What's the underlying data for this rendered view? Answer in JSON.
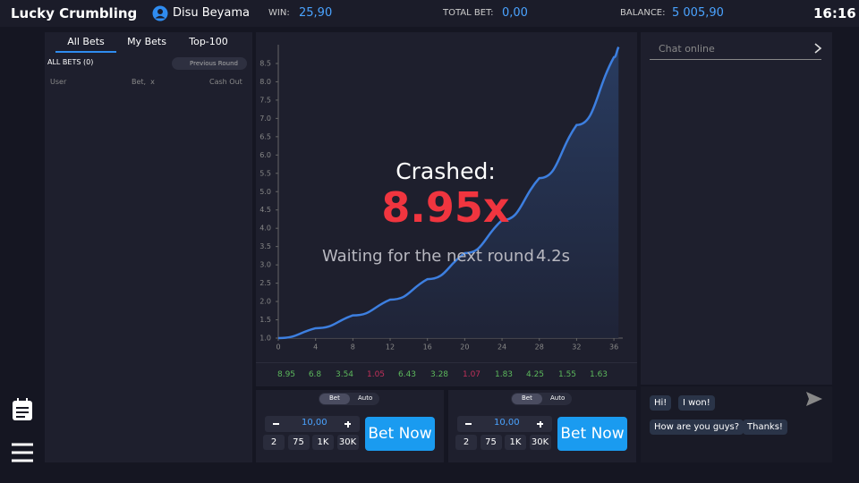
{
  "header": {
    "title": "Lucky Crumbling",
    "user": "Disu Beyama",
    "win_label": "WIN:",
    "win": "25,90",
    "total_bet_label": "TOTAL BET:",
    "total_bet": "0,00",
    "balance_label": "BALANCE:",
    "balance": "5 005,90",
    "time": "16:16"
  },
  "bets": {
    "tabs": [
      "All Bets",
      "My Bets",
      "Top-100"
    ],
    "count": "ALL BETS (0)",
    "previous_round": "Previous Round",
    "columns": [
      "User",
      "Bet,  x",
      "Cash Out"
    ]
  },
  "chart_data": {
    "type": "line",
    "x": [
      0,
      4,
      8,
      12,
      16,
      20,
      24,
      28,
      32,
      36,
      36.5
    ],
    "values": [
      1,
      1.27,
      1.62,
      2.05,
      2.61,
      3.32,
      4.22,
      5.37,
      6.82,
      8.67,
      8.95
    ],
    "color": "#3d7fe0",
    "xlim": [
      0,
      37
    ],
    "ylim": [
      1,
      9
    ],
    "xticks": [
      0,
      4,
      8,
      12,
      16,
      20,
      24,
      28,
      32,
      36
    ],
    "yticks": [
      {
        "value": 1,
        "label": "1.0"
      },
      1.5,
      {
        "value": 2,
        "label": "2.0"
      },
      2.5,
      {
        "value": 3,
        "label": "3.0"
      },
      3.5,
      {
        "value": 4,
        "label": "4.0"
      },
      4.5,
      {
        "value": 5,
        "label": "5.0"
      },
      5.5,
      {
        "value": 6,
        "label": "6.0"
      },
      6.5,
      {
        "value": 7,
        "label": "7.0"
      },
      7.5,
      {
        "value": 8,
        "label": "8.0"
      },
      8.5
    ]
  },
  "round": {
    "crashed": "Crashed:",
    "multiplier": "8.95x",
    "waiting": "Waiting for the next round",
    "countdown": "4.2s"
  },
  "history": [
    {
      "value": 8.95,
      "color": "#5cb85c"
    },
    {
      "value": 6.8,
      "color": "#5cb85c"
    },
    {
      "value": 3.54,
      "color": "#5cb85c"
    },
    {
      "value": 1.05,
      "color": "#c0305a"
    },
    {
      "value": 6.43,
      "color": "#5cb85c"
    },
    {
      "value": 3.28,
      "color": "#5cb85c"
    },
    {
      "value": 1.07,
      "color": "#c0305a"
    },
    {
      "value": 1.83,
      "color": "#5cb85c"
    },
    {
      "value": 4.25,
      "color": "#5cb85c"
    },
    {
      "value": 1.55,
      "color": "#5cb85c"
    },
    {
      "value": 1.63,
      "color": "#5cb85c"
    }
  ],
  "bet_panels": [
    {
      "tabs": [
        "Bet",
        "Auto"
      ],
      "amount": "10,00",
      "chips": [
        "2",
        "75",
        "1K",
        "30K"
      ],
      "button": "Bet Now"
    },
    {
      "tabs": [
        "Bet",
        "Auto"
      ],
      "amount": "10,00",
      "chips": [
        "2",
        "75",
        "1K",
        "30K"
      ],
      "button": "Bet Now"
    }
  ],
  "chat": {
    "placeholder": "Chat online",
    "messages": [
      "Hi!",
      "I won!",
      "How are you guys?",
      "Thanks!"
    ]
  }
}
